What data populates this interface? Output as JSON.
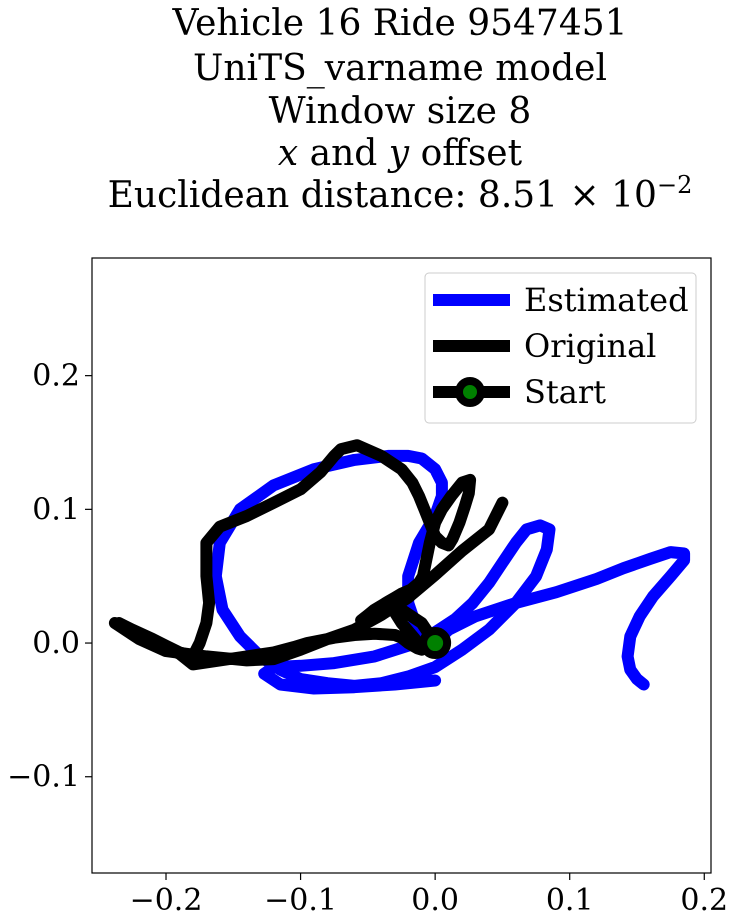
{
  "chart_data": {
    "type": "line",
    "title": {
      "line1": "Vehicle 16 Ride 9547451",
      "line2": "UniTS_varname model",
      "line3": "Window size 8",
      "line4_x": "x",
      "line4_mid": " and ",
      "line4_y": "y",
      "line4_end": " offset",
      "line5_prefix": "Euclidean distance: 8.51 × 10",
      "line5_exp": "−2"
    },
    "xlabel": "",
    "ylabel": "",
    "xlim": [
      -0.255,
      0.205
    ],
    "ylim": [
      -0.172,
      0.288
    ],
    "xticks": [
      -0.2,
      -0.1,
      0.0,
      0.1,
      0.2
    ],
    "xtick_labels": [
      "−0.2",
      "−0.1",
      "0.0",
      "0.1",
      "0.2"
    ],
    "yticks": [
      -0.1,
      0.0,
      0.1,
      0.2
    ],
    "ytick_labels": [
      "−0.1",
      "0.0",
      "0.1",
      "0.2"
    ],
    "grid": false,
    "legend_position": "top-right",
    "legend": [
      "Estimated",
      "Original",
      "Start"
    ],
    "series": [
      {
        "name": "Estimated",
        "color": "#0000ff",
        "x": [
          0.0,
          0.01,
          0.03,
          0.06,
          0.09,
          0.12,
          0.14,
          0.16,
          0.175,
          0.185,
          0.185,
          0.175,
          0.162,
          0.152,
          0.145,
          0.143,
          0.145,
          0.15,
          0.155
        ],
        "y": [
          0.0,
          0.01,
          0.02,
          0.03,
          0.038,
          0.048,
          0.056,
          0.063,
          0.068,
          0.067,
          0.062,
          0.05,
          0.035,
          0.02,
          0.005,
          -0.01,
          -0.02,
          -0.027,
          -0.031
        ]
      },
      {
        "name": "Estimated-path",
        "color": "#0000ff",
        "x": [
          0.0,
          -0.015,
          -0.02,
          -0.02,
          -0.012,
          0.0,
          0.005,
          0.005,
          0.0,
          -0.01,
          -0.02,
          -0.035,
          -0.06,
          -0.09,
          -0.12,
          -0.145,
          -0.16,
          -0.163,
          -0.158,
          -0.145,
          -0.13,
          -0.115,
          -0.1,
          -0.08,
          -0.06,
          -0.04,
          -0.02,
          0.0,
          0.02,
          0.04,
          0.06,
          0.075,
          0.083,
          0.085,
          0.078,
          0.068,
          0.06,
          0.05,
          0.04,
          0.028,
          0.015,
          0.0,
          -0.02,
          -0.045,
          -0.075,
          -0.1,
          -0.12,
          -0.127,
          -0.115,
          -0.09,
          -0.06,
          -0.03,
          0.0
        ],
        "y": [
          0.0,
          0.015,
          0.03,
          0.05,
          0.075,
          0.095,
          0.11,
          0.12,
          0.13,
          0.138,
          0.14,
          0.14,
          0.137,
          0.13,
          0.118,
          0.1,
          0.075,
          0.05,
          0.025,
          0.005,
          -0.01,
          -0.02,
          -0.027,
          -0.03,
          -0.032,
          -0.03,
          -0.025,
          -0.018,
          -0.005,
          0.01,
          0.03,
          0.05,
          0.07,
          0.085,
          0.088,
          0.085,
          0.075,
          0.06,
          0.045,
          0.03,
          0.018,
          0.008,
          -0.002,
          -0.01,
          -0.015,
          -0.017,
          -0.018,
          -0.023,
          -0.031,
          -0.034,
          -0.033,
          -0.031,
          -0.028
        ]
      },
      {
        "name": "Original",
        "color": "#000000",
        "x": [
          0.0,
          -0.01,
          -0.025,
          -0.03,
          -0.025,
          -0.015,
          -0.01,
          -0.013,
          -0.02,
          -0.025,
          -0.03,
          -0.045,
          -0.06,
          -0.075,
          -0.085,
          -0.095,
          -0.105,
          -0.12,
          -0.14,
          -0.16,
          -0.18,
          -0.185,
          -0.19,
          -0.2,
          -0.207,
          -0.215,
          -0.225,
          -0.238,
          -0.235,
          -0.22,
          -0.2,
          -0.17,
          -0.14,
          -0.12,
          -0.1,
          -0.08,
          -0.06,
          -0.04,
          -0.02,
          0.0,
          0.02,
          0.04,
          0.05
        ],
        "y": [
          0.0,
          0.015,
          0.025,
          0.023,
          0.015,
          0.003,
          -0.005,
          -0.004,
          0.0,
          0.004,
          0.006,
          0.007,
          0.006,
          0.004,
          0.002,
          0.0,
          -0.003,
          -0.007,
          -0.01,
          -0.013,
          -0.016,
          -0.012,
          -0.008,
          -0.004,
          -0.001,
          0.002,
          0.007,
          0.015,
          0.013,
          0.003,
          -0.006,
          -0.01,
          -0.013,
          -0.012,
          -0.005,
          0.003,
          0.01,
          0.021,
          0.034,
          0.051,
          0.069,
          0.085,
          0.105
        ]
      },
      {
        "name": "Original-path",
        "color": "#000000",
        "x": [
          -0.235,
          -0.225,
          -0.21,
          -0.2,
          -0.19,
          -0.18,
          -0.175,
          -0.17,
          -0.168,
          -0.17,
          -0.17,
          -0.16,
          -0.14,
          -0.12,
          -0.1,
          -0.085,
          -0.075,
          -0.07,
          -0.058,
          -0.04,
          -0.025,
          -0.017,
          -0.012,
          -0.008,
          -0.004,
          0.0,
          0.005,
          0.01,
          0.013,
          0.018,
          0.022,
          0.025,
          0.026,
          0.02,
          0.012,
          0.005,
          0.0,
          -0.004,
          -0.007,
          -0.009,
          -0.012,
          -0.018,
          -0.025,
          -0.03,
          -0.035,
          -0.04,
          -0.045,
          -0.05,
          -0.055
        ],
        "y": [
          0.015,
          0.01,
          0.003,
          -0.002,
          -0.007,
          -0.01,
          0.0,
          0.015,
          0.03,
          0.05,
          0.075,
          0.087,
          0.095,
          0.105,
          0.115,
          0.128,
          0.14,
          0.145,
          0.148,
          0.14,
          0.13,
          0.12,
          0.11,
          0.1,
          0.09,
          0.08,
          0.075,
          0.073,
          0.078,
          0.09,
          0.102,
          0.112,
          0.122,
          0.12,
          0.11,
          0.1,
          0.09,
          0.075,
          0.06,
          0.05,
          0.045,
          0.04,
          0.037,
          0.034,
          0.031,
          0.028,
          0.025,
          0.021,
          0.017
        ]
      }
    ],
    "start_point": {
      "x": 0.0,
      "y": 0.0,
      "outer_color": "#000000",
      "inner_color": "#008000"
    }
  }
}
